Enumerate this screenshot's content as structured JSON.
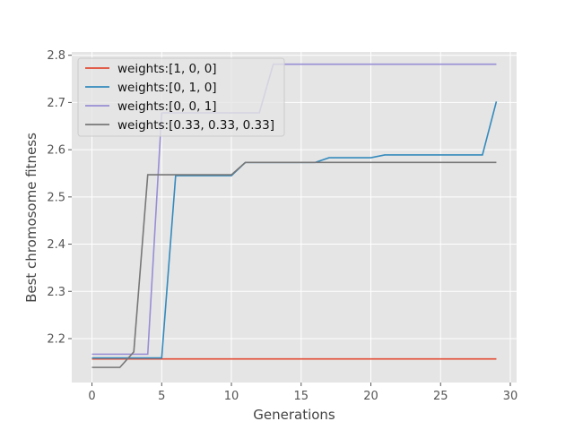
{
  "chart_data": {
    "type": "line",
    "title": "",
    "xlabel": "Generations",
    "ylabel": "Best chromosome fitness",
    "xlim": [
      -1.45,
      30.45
    ],
    "ylim": [
      2.107,
      2.807
    ],
    "xticks": [
      0,
      5,
      10,
      15,
      20,
      25,
      30
    ],
    "yticks": [
      2.2,
      2.3,
      2.4,
      2.5,
      2.6,
      2.7,
      2.8
    ],
    "xtick_labels": [
      "0",
      "5",
      "10",
      "15",
      "20",
      "25",
      "30"
    ],
    "ytick_labels": [
      "2.2",
      "2.3",
      "2.4",
      "2.5",
      "2.6",
      "2.7",
      "2.8"
    ],
    "grid": true,
    "legend_position": "top-left",
    "x": [
      0,
      1,
      2,
      3,
      4,
      5,
      6,
      7,
      8,
      9,
      10,
      11,
      12,
      13,
      14,
      15,
      16,
      17,
      18,
      19,
      20,
      21,
      22,
      23,
      24,
      25,
      26,
      27,
      28,
      29
    ],
    "series": [
      {
        "name": "weights:[1, 0, 0]",
        "color": "#E24A33",
        "values": [
          2.157,
          2.157,
          2.157,
          2.157,
          2.157,
          2.157,
          2.157,
          2.157,
          2.157,
          2.157,
          2.157,
          2.157,
          2.157,
          2.157,
          2.157,
          2.157,
          2.157,
          2.157,
          2.157,
          2.157,
          2.157,
          2.157,
          2.157,
          2.157,
          2.157,
          2.157,
          2.157,
          2.157,
          2.157,
          2.157
        ]
      },
      {
        "name": "weights:[0, 1, 0]",
        "color": "#348ABD",
        "values": [
          2.159,
          2.159,
          2.159,
          2.159,
          2.159,
          2.159,
          2.545,
          2.545,
          2.545,
          2.545,
          2.545,
          2.573,
          2.573,
          2.573,
          2.573,
          2.573,
          2.573,
          2.583,
          2.583,
          2.583,
          2.583,
          2.589,
          2.589,
          2.589,
          2.589,
          2.589,
          2.589,
          2.589,
          2.589,
          2.702
        ]
      },
      {
        "name": "weights:[0, 0, 1]",
        "color": "#988ED5",
        "values": [
          2.167,
          2.167,
          2.167,
          2.167,
          2.167,
          2.678,
          2.678,
          2.678,
          2.678,
          2.678,
          2.678,
          2.678,
          2.678,
          2.781,
          2.781,
          2.781,
          2.781,
          2.781,
          2.781,
          2.781,
          2.781,
          2.781,
          2.781,
          2.781,
          2.781,
          2.781,
          2.781,
          2.781,
          2.781,
          2.781
        ]
      },
      {
        "name": "weights:[0.33, 0.33, 0.33]",
        "color": "#777777",
        "values": [
          2.139,
          2.139,
          2.139,
          2.172,
          2.547,
          2.547,
          2.547,
          2.547,
          2.547,
          2.547,
          2.547,
          2.573,
          2.573,
          2.573,
          2.573,
          2.573,
          2.573,
          2.573,
          2.573,
          2.573,
          2.573,
          2.573,
          2.573,
          2.573,
          2.573,
          2.573,
          2.573,
          2.573,
          2.573,
          2.573
        ]
      }
    ]
  }
}
